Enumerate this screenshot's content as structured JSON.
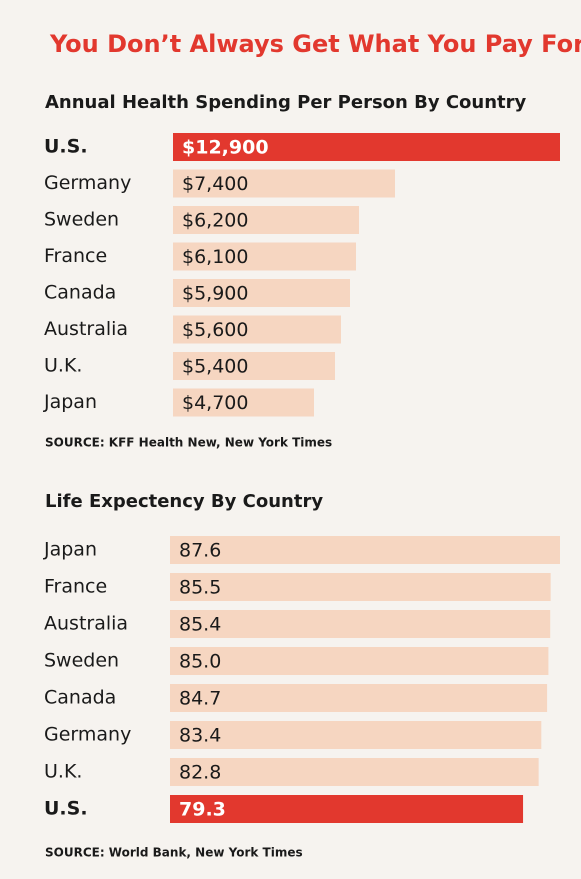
{
  "title": "You Don’t Always Get What You Pay For",
  "chart_data": [
    {
      "type": "bar",
      "orientation": "horizontal",
      "title": "Annual Health Spending Per Person By Country",
      "categories": [
        "U.S.",
        "Germany",
        "Sweden",
        "France",
        "Canada",
        "Australia",
        "U.K.",
        "Japan"
      ],
      "values": [
        12900,
        7400,
        6200,
        6100,
        5900,
        5600,
        5400,
        4700
      ],
      "value_labels": [
        "$12,900",
        "$7,400",
        "$6,200",
        "$6,100",
        "$5,900",
        "$5,600",
        "$5,400",
        "$4,700"
      ],
      "colors": [
        "#e2382e",
        "#f6d6c1",
        "#f6d6c1",
        "#f6d6c1",
        "#f6d6c1",
        "#f6d6c1",
        "#f6d6c1",
        "#f6d6c1"
      ],
      "highlight_color": "#e2382e",
      "note": "SOURCE: KFF Health New, New York Times"
    },
    {
      "type": "bar",
      "orientation": "horizontal",
      "title": "Life Expectency By Country",
      "categories": [
        "Japan",
        "France",
        "Australia",
        "Sweden",
        "Canada",
        "Germany",
        "U.K.",
        "U.S."
      ],
      "values": [
        87.6,
        85.5,
        85.4,
        85.0,
        84.7,
        83.4,
        82.8,
        79.3
      ],
      "value_labels": [
        "87.6",
        "85.5",
        "85.4",
        "85.0",
        "84.7",
        "83.4",
        "82.8",
        "79.3"
      ],
      "colors": [
        "#f6d6c1",
        "#f6d6c1",
        "#f6d6c1",
        "#f6d6c1",
        "#f6d6c1",
        "#f6d6c1",
        "#f6d6c1",
        "#e2382e"
      ],
      "highlight_color": "#e2382e",
      "note": "SOURCE: World Bank, New York Times"
    }
  ]
}
